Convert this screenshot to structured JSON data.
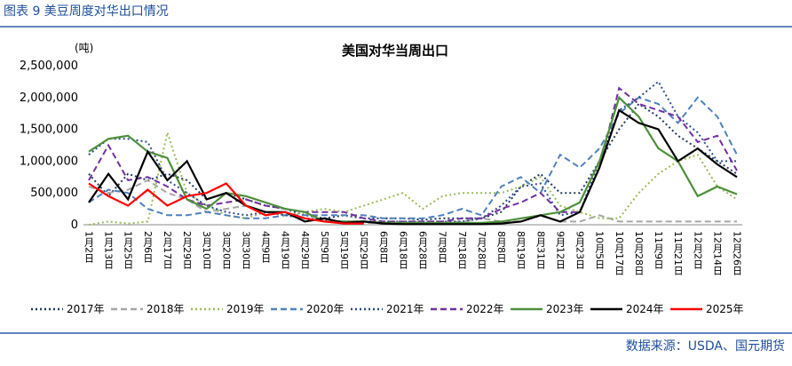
{
  "header": "图表 9  美豆周度对华出口情况",
  "source": "数据来源：USDA、国元期货",
  "chart_data": {
    "type": "line",
    "title": "美国对华当周出口",
    "y_label": "(吨)",
    "categories": [
      "1月2日",
      "1月13日",
      "1月25日",
      "2月6日",
      "2月17日",
      "2月29日",
      "3月10日",
      "3月20日",
      "3月30日",
      "4月9日",
      "4月19日",
      "4月29日",
      "5月9日",
      "5月19日",
      "5月29日",
      "6月8日",
      "6月18日",
      "6月28日",
      "7月8日",
      "7月18日",
      "7月28日",
      "8月8日",
      "8月19日",
      "8月31日",
      "9月12日",
      "9月23日",
      "10月5日",
      "10月17日",
      "10月28日",
      "11月9日",
      "11月21日",
      "12月2日",
      "12月14日",
      "12月26日"
    ],
    "ylim": [
      0,
      2500000
    ],
    "yticks": [
      0,
      {
        "value": 500000,
        "label": "500,000"
      },
      {
        "value": 1000000,
        "label": "1,000,000"
      },
      {
        "value": 1500000,
        "label": "1,500,000"
      },
      {
        "value": 2000000,
        "label": "2,000,000"
      },
      {
        "value": 2500000,
        "label": "2,500,000"
      }
    ],
    "grid": false,
    "legend": "bottom",
    "series": [
      {
        "name": "2017年",
        "color": "#1f3a5f",
        "style": "dotted",
        "values": [
          800000,
          450000,
          800000,
          700000,
          800000,
          700000,
          400000,
          500000,
          400000,
          300000,
          250000,
          150000,
          100000,
          150000,
          100000,
          100000,
          100000,
          80000,
          100000,
          100000,
          100000,
          200000,
          600000,
          800000,
          500000,
          500000,
          1000000,
          1500000,
          1900000,
          1700000,
          1400000,
          1200000,
          1000000,
          800000
        ]
      },
      {
        "name": "2018年",
        "color": "#a6a6a6",
        "style": "dashed",
        "values": [
          600000,
          500000,
          550000,
          700000,
          500000,
          400000,
          200000,
          250000,
          300000,
          200000,
          150000,
          100000,
          50000,
          50000,
          30000,
          30000,
          30000,
          50000,
          30000,
          50000,
          100000,
          50000,
          50000,
          150000,
          50000,
          50000,
          150000,
          50000,
          50000,
          50000,
          50000,
          50000,
          50000,
          50000
        ]
      },
      {
        "name": "2019年",
        "color": "#9bbb59",
        "style": "dotted",
        "values": [
          0,
          50000,
          20000,
          50000,
          1450000,
          500000,
          300000,
          150000,
          100000,
          200000,
          150000,
          200000,
          250000,
          200000,
          300000,
          400000,
          500000,
          250000,
          450000,
          500000,
          500000,
          500000,
          600000,
          750000,
          300000,
          200000,
          100000,
          100000,
          500000,
          800000,
          1000000,
          1100000,
          600000,
          400000
        ]
      },
      {
        "name": "2020年",
        "color": "#4f81bd",
        "style": "dashed",
        "values": [
          350000,
          550000,
          500000,
          250000,
          150000,
          150000,
          200000,
          150000,
          100000,
          100000,
          150000,
          150000,
          150000,
          150000,
          150000,
          100000,
          100000,
          100000,
          150000,
          250000,
          150000,
          600000,
          750000,
          500000,
          1100000,
          900000,
          1200000,
          1750000,
          2000000,
          1900000,
          1600000,
          2000000,
          1700000,
          1100000
        ]
      },
      {
        "name": "2021年",
        "color": "#2e4d8c",
        "style": "dotted",
        "values": [
          1100000,
          1350000,
          1350000,
          1300000,
          700000,
          500000,
          300000,
          200000,
          150000,
          200000,
          150000,
          100000,
          80000,
          50000,
          50000,
          50000,
          50000,
          50000,
          50000,
          50000,
          100000,
          300000,
          600000,
          650000,
          150000,
          200000,
          1000000,
          1800000,
          2000000,
          2250000,
          1700000,
          1450000,
          1000000,
          1000000
        ]
      },
      {
        "name": "2022年",
        "color": "#7030a0",
        "style": "dashed",
        "values": [
          700000,
          1250000,
          700000,
          750000,
          600000,
          400000,
          300000,
          350000,
          400000,
          300000,
          250000,
          200000,
          200000,
          200000,
          100000,
          50000,
          50000,
          50000,
          50000,
          100000,
          100000,
          250000,
          350000,
          500000,
          200000,
          200000,
          900000,
          2150000,
          1900000,
          1800000,
          1700000,
          1300000,
          1400000,
          850000
        ]
      },
      {
        "name": "2023年",
        "color": "#4e8f3a",
        "style": "solid",
        "values": [
          1150000,
          1350000,
          1400000,
          1150000,
          1050000,
          400000,
          250000,
          500000,
          450000,
          350000,
          250000,
          200000,
          50000,
          50000,
          50000,
          30000,
          30000,
          30000,
          30000,
          30000,
          30000,
          50000,
          100000,
          150000,
          200000,
          350000,
          1000000,
          2000000,
          1700000,
          1200000,
          1000000,
          450000,
          600000,
          480000
        ]
      },
      {
        "name": "2024年",
        "color": "#000000",
        "style": "solid",
        "values": [
          350000,
          800000,
          400000,
          1150000,
          700000,
          1000000,
          400000,
          500000,
          300000,
          200000,
          200000,
          50000,
          100000,
          30000,
          50000,
          20000,
          10000,
          10000,
          10000,
          10000,
          10000,
          20000,
          50000,
          150000,
          50000,
          200000,
          900000,
          1800000,
          1600000,
          1500000,
          1000000,
          1200000,
          950000,
          750000
        ]
      },
      {
        "name": "2025年",
        "color": "#ff0000",
        "style": "solid",
        "values": [
          650000,
          450000,
          300000,
          550000,
          300000,
          450000,
          500000,
          650000,
          300000,
          150000,
          200000,
          100000,
          50000,
          20000,
          20000,
          null,
          null,
          null,
          null,
          null,
          null,
          null,
          null,
          null,
          null,
          null,
          null,
          null,
          null,
          null,
          null,
          null,
          null,
          null
        ]
      }
    ]
  }
}
